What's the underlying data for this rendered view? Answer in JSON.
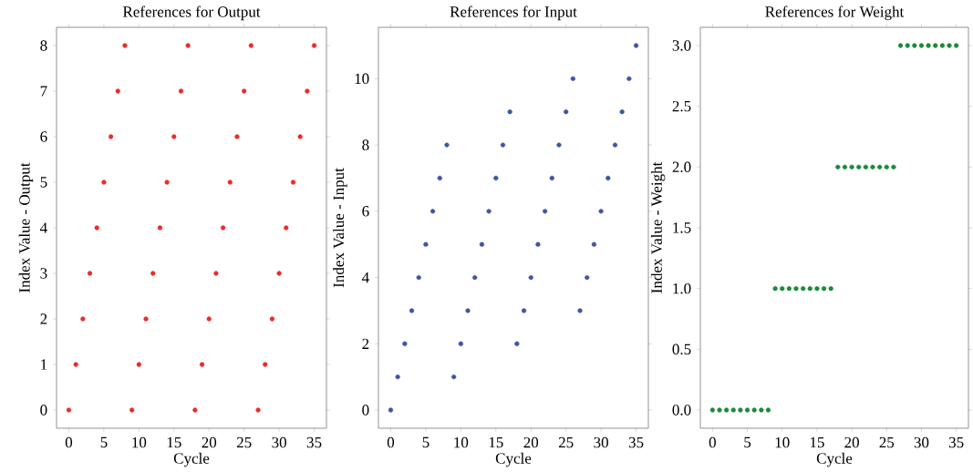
{
  "chart_data": [
    {
      "type": "scatter",
      "title": "References for Output",
      "xlabel": "Cycle",
      "ylabel": "Index Value - Output",
      "color": "#ee2a2a",
      "marker": "circle",
      "x": [
        0,
        1,
        2,
        3,
        4,
        5,
        6,
        7,
        8,
        9,
        10,
        11,
        12,
        13,
        14,
        15,
        16,
        17,
        18,
        19,
        20,
        21,
        22,
        23,
        24,
        25,
        26,
        27,
        28,
        29,
        30,
        31,
        32,
        33,
        34,
        35
      ],
      "values": [
        0,
        1,
        2,
        3,
        4,
        5,
        6,
        7,
        8,
        0,
        1,
        2,
        3,
        4,
        5,
        6,
        7,
        8,
        0,
        1,
        2,
        3,
        4,
        5,
        6,
        7,
        8,
        0,
        1,
        2,
        3,
        4,
        5,
        6,
        7,
        8
      ],
      "xlim": [
        -1.75,
        36.75
      ],
      "ylim": [
        -0.4,
        8.4
      ],
      "xticks": [
        0,
        5,
        10,
        15,
        20,
        25,
        30,
        35
      ],
      "yticks": [
        0,
        1,
        2,
        3,
        4,
        5,
        6,
        7,
        8
      ]
    },
    {
      "type": "scatter",
      "title": "References for Input",
      "xlabel": "Cycle",
      "ylabel": "Index Value - Input",
      "color": "#3d56a6",
      "marker": "circle",
      "x": [
        0,
        1,
        2,
        3,
        4,
        5,
        6,
        7,
        8,
        9,
        10,
        11,
        12,
        13,
        14,
        15,
        16,
        17,
        18,
        19,
        20,
        21,
        22,
        23,
        24,
        25,
        26,
        27,
        28,
        29,
        30,
        31,
        32,
        33,
        34,
        35
      ],
      "values": [
        0,
        1,
        2,
        3,
        4,
        5,
        6,
        7,
        8,
        1,
        2,
        3,
        4,
        5,
        6,
        7,
        8,
        9,
        2,
        3,
        4,
        5,
        6,
        7,
        8,
        9,
        10,
        3,
        4,
        5,
        6,
        7,
        8,
        9,
        10,
        11
      ],
      "xlim": [
        -1.75,
        36.75
      ],
      "ylim": [
        -0.55,
        11.55
      ],
      "xticks": [
        0,
        5,
        10,
        15,
        20,
        25,
        30,
        35
      ],
      "yticks": [
        0,
        2,
        4,
        6,
        8,
        10
      ]
    },
    {
      "type": "scatter",
      "title": "References for Weight",
      "xlabel": "Cycle",
      "ylabel": "Index Value - Weight",
      "color": "#1b8a3c",
      "marker": "circle",
      "x": [
        0,
        1,
        2,
        3,
        4,
        5,
        6,
        7,
        8,
        9,
        10,
        11,
        12,
        13,
        14,
        15,
        16,
        17,
        18,
        19,
        20,
        21,
        22,
        23,
        24,
        25,
        26,
        27,
        28,
        29,
        30,
        31,
        32,
        33,
        34,
        35
      ],
      "values": [
        0,
        0,
        0,
        0,
        0,
        0,
        0,
        0,
        0,
        1,
        1,
        1,
        1,
        1,
        1,
        1,
        1,
        1,
        2,
        2,
        2,
        2,
        2,
        2,
        2,
        2,
        2,
        3,
        3,
        3,
        3,
        3,
        3,
        3,
        3,
        3
      ],
      "xlim": [
        -1.75,
        36.75
      ],
      "ylim": [
        -0.15,
        3.15
      ],
      "xticks": [
        0,
        5,
        10,
        15,
        20,
        25,
        30,
        35
      ],
      "yticks": [
        {
          "value": 0,
          "label": "0.0"
        },
        {
          "value": 0.5,
          "label": "0.5"
        },
        {
          "value": 1,
          "label": "1.0"
        },
        {
          "value": 1.5,
          "label": "1.5"
        },
        {
          "value": 2,
          "label": "2.0"
        },
        {
          "value": 2.5,
          "label": "2.5"
        },
        {
          "value": 3,
          "label": "3.0"
        }
      ]
    }
  ]
}
